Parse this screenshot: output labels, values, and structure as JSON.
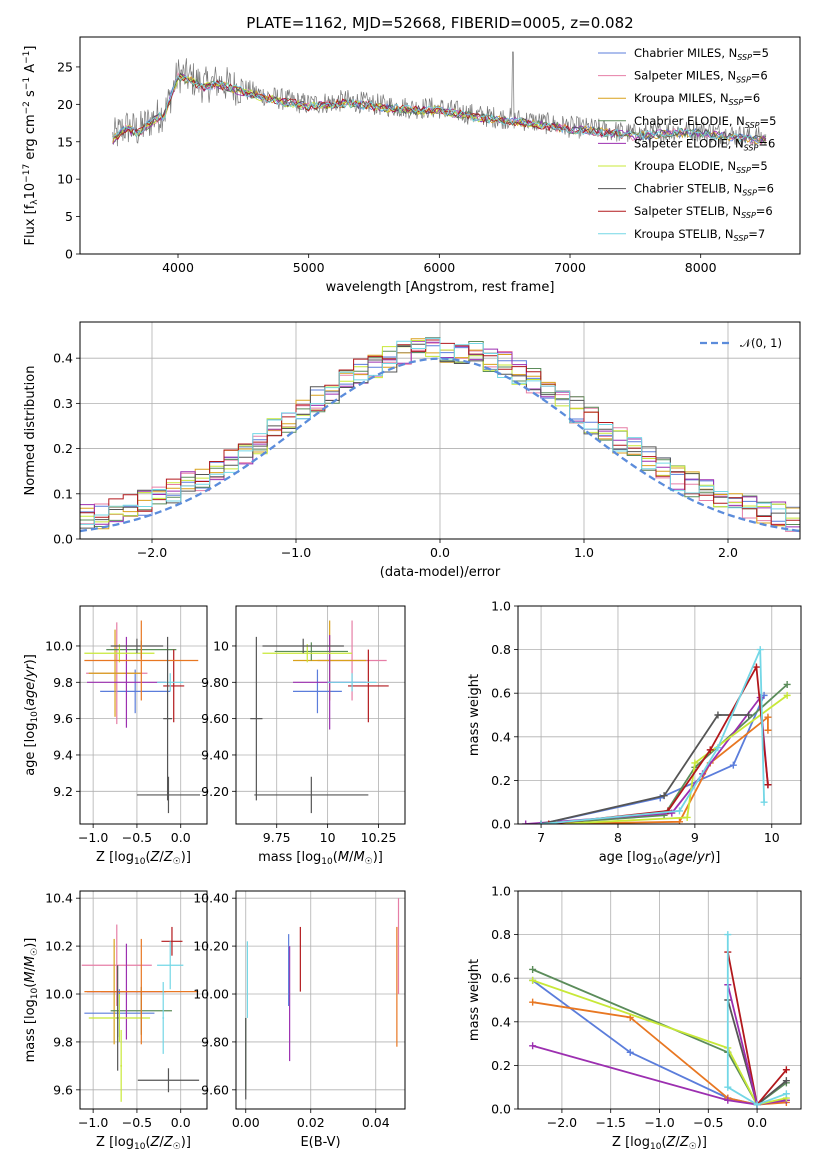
{
  "colors": {
    "Chabrier MILES": "#5b7ddb",
    "Salpeter MILES": "#e67ea6",
    "Kroupa MILES": "#d9a11c",
    "Chabrier ELODIE": "#5b8c5a",
    "Salpeter ELODIE": "#9c2fb0",
    "Kroupa ELODIE": "#c8e838",
    "Chabrier STELIB": "#555555",
    "Salpeter STELIB": "#b2181c",
    "Kroupa STELIB": "#73d7e6",
    "orange": "#e87722",
    "dashed_normal": "#5b8cdb"
  },
  "chart_data": [
    {
      "id": "spectrum",
      "type": "line",
      "title": "PLATE=1162, MJD=52668, FIBERID=0005, z=0.082",
      "xlabel": "wavelength [Angstrom, rest frame]",
      "ylabel": "Flux [f",
      "xlim": [
        3250,
        8760
      ],
      "ylim": [
        0,
        29
      ],
      "xticks": [
        4000,
        5000,
        6000,
        7000,
        8000
      ],
      "yticks": [
        0,
        5,
        10,
        15,
        20,
        25
      ],
      "legend_placement": "top-right",
      "series": [
        {
          "name": "Chabrier MILES",
          "sub": "SSP",
          "n": 5,
          "color": "Chabrier MILES"
        },
        {
          "name": "Salpeter MILES",
          "sub": "SSP",
          "n": 6,
          "color": "Salpeter MILES"
        },
        {
          "name": "Kroupa MILES",
          "sub": "SSP",
          "n": 6,
          "color": "Kroupa MILES"
        },
        {
          "name": "Chabrier ELODIE",
          "sub": "SSP",
          "n": 5,
          "color": "Chabrier ELODIE"
        },
        {
          "name": "Salpeter ELODIE",
          "sub": "SSP",
          "n": 6,
          "color": "Salpeter ELODIE"
        },
        {
          "name": "Kroupa ELODIE",
          "sub": "SSP",
          "n": 5,
          "color": "Kroupa ELODIE"
        },
        {
          "name": "Chabrier STELIB",
          "sub": "SSP",
          "n": 6,
          "color": "Chabrier STELIB"
        },
        {
          "name": "Salpeter STELIB",
          "sub": "SSP",
          "n": 6,
          "color": "Salpeter STELIB"
        },
        {
          "name": "Kroupa STELIB",
          "sub": "SSP",
          "n": 7,
          "color": "Kroupa STELIB"
        }
      ],
      "continuum_points": [
        [
          3500,
          15.5
        ],
        [
          3600,
          17
        ],
        [
          3700,
          16.5
        ],
        [
          3800,
          18
        ],
        [
          3900,
          19
        ],
        [
          4000,
          24
        ],
        [
          4100,
          23.5
        ],
        [
          4200,
          22.5
        ],
        [
          4300,
          23
        ],
        [
          4500,
          22
        ],
        [
          4700,
          21
        ],
        [
          5000,
          20
        ],
        [
          5300,
          20.5
        ],
        [
          5500,
          20
        ],
        [
          5800,
          19.5
        ],
        [
          6000,
          19.5
        ],
        [
          6300,
          18.5
        ],
        [
          6600,
          18
        ],
        [
          6800,
          17.5
        ],
        [
          7000,
          17
        ],
        [
          7300,
          16.5
        ],
        [
          7500,
          16
        ],
        [
          7800,
          16.5
        ],
        [
          8000,
          16.5
        ],
        [
          8200,
          16
        ],
        [
          8500,
          15.5
        ]
      ]
    },
    {
      "id": "residuals",
      "type": "step",
      "xlabel": "(data-model)/error",
      "ylabel": "Normed distribution",
      "xlim": [
        -2.5,
        2.5
      ],
      "ylim": [
        0,
        0.48
      ],
      "xticks": [
        -2,
        -1,
        0,
        1,
        2
      ],
      "yticks": [
        0.0,
        0.1,
        0.2,
        0.3,
        0.4
      ],
      "legend": "𝒩(0, 1)",
      "normal": {
        "mean": 0,
        "sigma": 1
      }
    },
    {
      "id": "age_vs_Z",
      "type": "errorbar",
      "xlabel": "Z [log10(Z/Z☉)]",
      "ylabel": "age  [log10(age/yr)]",
      "xlim": [
        -1.15,
        0.3
      ],
      "ylim": [
        9.02,
        10.22
      ],
      "xticks": [
        -1.0,
        -0.5,
        0.0
      ],
      "yticks": [
        9.2,
        9.4,
        9.6,
        9.8,
        10.0
      ],
      "points": [
        {
          "c": "Chabrier MILES",
          "x": -0.52,
          "y": 9.75,
          "dx": 0.4,
          "dy": 0.12
        },
        {
          "c": "Salpeter MILES",
          "x": -0.73,
          "y": 9.85,
          "dx": 0.35,
          "dy": 0.28
        },
        {
          "c": "Kroupa MILES",
          "x": -0.75,
          "y": 9.85,
          "dx": 0.3,
          "dy": 0.24
        },
        {
          "c": "Chabrier ELODIE",
          "x": -0.45,
          "y": 9.98,
          "dx": 0.4,
          "dy": 0.05
        },
        {
          "c": "Salpeter ELODIE",
          "x": -0.62,
          "y": 9.8,
          "dx": 0.45,
          "dy": 0.25
        },
        {
          "c": "Kroupa ELODIE",
          "x": -0.7,
          "y": 9.96,
          "dx": 0.4,
          "dy": 0.05
        },
        {
          "c": "Chabrier STELIB",
          "x": -0.14,
          "y": 9.18,
          "dx": 0.36,
          "dy": 0.1
        },
        {
          "c": "Salpeter STELIB",
          "x": -0.08,
          "y": 9.78,
          "dx": 0.12,
          "dy": 0.2
        },
        {
          "c": "Kroupa STELIB",
          "x": -0.12,
          "y": 9.8,
          "dx": 0.15,
          "dy": 0.05
        },
        {
          "c": "Chabrier STELIB",
          "x": -0.5,
          "y": 10.0,
          "dx": 0.3,
          "dy": 0.04
        },
        {
          "c": "orange",
          "x": -0.45,
          "y": 9.92,
          "dx": 0.65,
          "dy": 0.22
        },
        {
          "c": "Chabrier STELIB",
          "x": -0.15,
          "y": 9.6,
          "dx": 0.05,
          "dy": 0.45
        }
      ]
    },
    {
      "id": "age_vs_mass",
      "type": "errorbar",
      "xlabel": "mass [log10(M/M☉)]",
      "ylabel": "",
      "xlim": [
        9.55,
        10.38
      ],
      "ylim": [
        9.02,
        10.22
      ],
      "xticks": [
        9.75,
        10.0,
        10.25
      ],
      "yticks": [
        9.2,
        9.4,
        9.6,
        9.8,
        10.0
      ],
      "points": [
        {
          "c": "Chabrier MILES",
          "x": 9.95,
          "y": 9.75,
          "dx": 0.12,
          "dy": 0.12
        },
        {
          "c": "Salpeter MILES",
          "x": 10.12,
          "y": 9.92,
          "dx": 0.17,
          "dy": 0.22
        },
        {
          "c": "Kroupa MILES",
          "x": 10.01,
          "y": 9.92,
          "dx": 0.18,
          "dy": 0.22
        },
        {
          "c": "Chabrier ELODIE",
          "x": 9.92,
          "y": 9.97,
          "dx": 0.18,
          "dy": 0.05
        },
        {
          "c": "Salpeter ELODIE",
          "x": 10.01,
          "y": 9.8,
          "dx": 0.18,
          "dy": 0.26
        },
        {
          "c": "Kroupa ELODIE",
          "x": 9.9,
          "y": 9.96,
          "dx": 0.22,
          "dy": 0.05
        },
        {
          "c": "Chabrier STELIB",
          "x": 9.92,
          "y": 9.18,
          "dx": 0.28,
          "dy": 0.1
        },
        {
          "c": "Salpeter STELIB",
          "x": 10.2,
          "y": 9.78,
          "dx": 0.1,
          "dy": 0.2
        },
        {
          "c": "Kroupa STELIB",
          "x": 10.12,
          "y": 9.8,
          "dx": 0.12,
          "dy": 0.05
        },
        {
          "c": "Chabrier STELIB",
          "x": 9.65,
          "y": 9.6,
          "dx": 0.03,
          "dy": 0.45
        },
        {
          "c": "Chabrier STELIB",
          "x": 9.88,
          "y": 10.0,
          "dx": 0.2,
          "dy": 0.04
        }
      ]
    },
    {
      "id": "weight_vs_age",
      "type": "line",
      "xlabel": "age  [log10(age/yr)]",
      "ylabel": "mass weight",
      "xlim": [
        6.7,
        10.38
      ],
      "ylim": [
        0,
        1.0
      ],
      "xticks": [
        7,
        8,
        9,
        10
      ],
      "yticks": [
        0.0,
        0.2,
        0.4,
        0.6,
        0.8,
        1.0
      ],
      "series": [
        {
          "c": "Chabrier MILES",
          "pts": [
            [
              7.0,
              0.0
            ],
            [
              8.55,
              0.12
            ],
            [
              9.5,
              0.27
            ],
            [
              9.9,
              0.59
            ]
          ]
        },
        {
          "c": "orange",
          "pts": [
            [
              7.0,
              0.0
            ],
            [
              8.8,
              0.01
            ],
            [
              9.2,
              0.28
            ],
            [
              9.95,
              0.49
            ],
            [
              9.95,
              0.43
            ]
          ]
        },
        {
          "c": "Chabrier ELODIE",
          "pts": [
            [
              7.0,
              0.0
            ],
            [
              8.6,
              0.04
            ],
            [
              9.0,
              0.26
            ],
            [
              10.2,
              0.64
            ]
          ]
        },
        {
          "c": "Salpeter ELODIE",
          "pts": [
            [
              6.8,
              0.0
            ],
            [
              8.7,
              0.05
            ],
            [
              9.1,
              0.23
            ],
            [
              9.85,
              0.58
            ],
            [
              9.95,
              0.18
            ]
          ]
        },
        {
          "c": "Kroupa ELODIE",
          "pts": [
            [
              7.2,
              0.0
            ],
            [
              8.9,
              0.03
            ],
            [
              9.0,
              0.28
            ],
            [
              10.2,
              0.59
            ]
          ]
        },
        {
          "c": "Chabrier STELIB",
          "pts": [
            [
              7.0,
              0.0
            ],
            [
              8.6,
              0.13
            ],
            [
              9.3,
              0.5
            ],
            [
              9.7,
              0.5
            ]
          ]
        },
        {
          "c": "Salpeter STELIB",
          "pts": [
            [
              7.1,
              0.0
            ],
            [
              8.65,
              0.06
            ],
            [
              9.2,
              0.34
            ],
            [
              9.8,
              0.72
            ],
            [
              9.95,
              0.18
            ]
          ]
        },
        {
          "c": "Kroupa STELIB",
          "pts": [
            [
              7.0,
              0.0
            ],
            [
              8.8,
              0.06
            ],
            [
              9.3,
              0.35
            ],
            [
              9.85,
              0.8
            ],
            [
              9.9,
              0.1
            ]
          ]
        }
      ]
    },
    {
      "id": "mass_vs_Z",
      "type": "errorbar",
      "xlabel": "Z [log10(Z/Z☉)]",
      "ylabel": "mass [log10(M/M☉)]",
      "xlim": [
        -1.15,
        0.3
      ],
      "ylim": [
        9.52,
        10.43
      ],
      "xticks": [
        -1.0,
        -0.5,
        0.0
      ],
      "yticks": [
        9.6,
        9.8,
        10.0,
        10.2,
        10.4
      ],
      "points": [
        {
          "c": "Chabrier MILES",
          "x": -0.7,
          "y": 9.92,
          "dx": 0.4,
          "dy": 0.1
        },
        {
          "c": "Salpeter MILES",
          "x": -0.73,
          "y": 10.12,
          "dx": 0.4,
          "dy": 0.17
        },
        {
          "c": "Kroupa MILES",
          "x": -0.76,
          "y": 10.01,
          "dx": 0.15,
          "dy": 0.22
        },
        {
          "c": "Chabrier ELODIE",
          "x": -0.45,
          "y": 9.93,
          "dx": 0.35,
          "dy": 0.1
        },
        {
          "c": "Salpeter ELODIE",
          "x": -0.62,
          "y": 10.01,
          "dx": 0.45,
          "dy": 0.2
        },
        {
          "c": "Kroupa ELODIE",
          "x": -0.7,
          "y": 9.9,
          "dx": 0.35,
          "dy": 0.1
        },
        {
          "c": "Chabrier STELIB",
          "x": -0.14,
          "y": 9.64,
          "dx": 0.35,
          "dy": 0.05
        },
        {
          "c": "Salpeter STELIB",
          "x": -0.1,
          "y": 10.22,
          "dx": 0.12,
          "dy": 0.06
        },
        {
          "c": "Kroupa STELIB",
          "x": -0.12,
          "y": 10.12,
          "dx": 0.15,
          "dy": 0.1
        },
        {
          "c": "orange",
          "x": -0.45,
          "y": 10.01,
          "dx": 0.65,
          "dy": 0.22
        },
        {
          "c": "Kroupa ELODIE",
          "x": -0.68,
          "y": 9.7,
          "dx": 0.01,
          "dy": 0.15
        },
        {
          "c": "Chabrier STELIB",
          "x": -0.72,
          "y": 9.9,
          "dx": 0.01,
          "dy": 0.22
        },
        {
          "c": "Kroupa STELIB",
          "x": -0.2,
          "y": 9.9,
          "dx": 0.01,
          "dy": 0.15
        }
      ]
    },
    {
      "id": "mass_vs_ebv",
      "type": "vlines",
      "xlabel": "E(B-V)",
      "ylabel": "",
      "xlim": [
        -0.003,
        0.049
      ],
      "ylim": [
        9.52,
        10.43
      ],
      "xticks": [
        0.0,
        0.02,
        0.04
      ],
      "yticks": [
        9.6,
        9.8,
        10.0,
        10.2,
        10.4
      ],
      "lines": [
        {
          "c": "Kroupa STELIB",
          "x": 0.0005,
          "y0": 9.9,
          "y1": 10.22
        },
        {
          "c": "Chabrier ELODIE",
          "x": 0.0,
          "y0": 9.6,
          "y1": 9.9
        },
        {
          "c": "Chabrier STELIB",
          "x": 0.0,
          "y0": 9.56,
          "y1": 9.9
        },
        {
          "c": "Salpeter ELODIE",
          "x": 0.0135,
          "y0": 9.72,
          "y1": 10.2
        },
        {
          "c": "Chabrier MILES",
          "x": 0.0132,
          "y0": 9.95,
          "y1": 10.25
        },
        {
          "c": "Salpeter STELIB",
          "x": 0.0168,
          "y0": 10.01,
          "y1": 10.28
        },
        {
          "c": "orange",
          "x": 0.0465,
          "y0": 9.78,
          "y1": 10.28
        },
        {
          "c": "Salpeter MILES",
          "x": 0.047,
          "y0": 10.0,
          "y1": 10.4
        }
      ]
    },
    {
      "id": "weight_vs_Z",
      "type": "line",
      "xlabel": "Z [log10(Z/Z☉)]",
      "ylabel": "mass weight",
      "xlim": [
        -2.45,
        0.45
      ],
      "ylim": [
        0,
        1.0
      ],
      "xticks": [
        -2.0,
        -1.5,
        -1.0,
        -0.5,
        0.0
      ],
      "yticks": [
        0.0,
        0.2,
        0.4,
        0.6,
        0.8,
        1.0
      ],
      "series": [
        {
          "c": "Chabrier MILES",
          "pts": [
            [
              -2.3,
              0.59
            ],
            [
              -1.3,
              0.26
            ],
            [
              -0.3,
              0.05
            ],
            [
              0.0,
              0.02
            ],
            [
              0.3,
              0.04
            ]
          ]
        },
        {
          "c": "orange",
          "pts": [
            [
              -2.3,
              0.49
            ],
            [
              -1.3,
              0.42
            ],
            [
              -0.3,
              0.05
            ],
            [
              0.0,
              0.02
            ],
            [
              0.3,
              0.03
            ]
          ]
        },
        {
          "c": "Chabrier ELODIE",
          "pts": [
            [
              -2.3,
              0.64
            ],
            [
              -0.3,
              0.26
            ],
            [
              0.0,
              0.02
            ],
            [
              0.3,
              0.12
            ]
          ]
        },
        {
          "c": "Salpeter ELODIE",
          "pts": [
            [
              -2.3,
              0.29
            ],
            [
              -0.3,
              0.04
            ],
            [
              0.0,
              0.02
            ],
            [
              0.3,
              0.04
            ]
          ]
        },
        {
          "c": "Kroupa ELODIE",
          "pts": [
            [
              -2.3,
              0.59
            ],
            [
              -0.3,
              0.28
            ],
            [
              0.0,
              0.02
            ],
            [
              0.3,
              0.05
            ]
          ]
        },
        {
          "c": "Chabrier STELIB",
          "pts": [
            [
              -0.3,
              0.5
            ],
            [
              0.0,
              0.02
            ],
            [
              0.3,
              0.13
            ]
          ]
        },
        {
          "c": "Salpeter STELIB",
          "pts": [
            [
              -0.3,
              0.72
            ],
            [
              0.0,
              0.02
            ],
            [
              0.3,
              0.18
            ]
          ]
        },
        {
          "c": "Salpeter ELODIE",
          "pts": [
            [
              -0.3,
              0.57
            ],
            [
              0.0,
              0.02
            ]
          ]
        },
        {
          "c": "Kroupa STELIB",
          "pts": [
            [
              -0.3,
              0.8
            ],
            [
              -0.3,
              0.1
            ],
            [
              0.0,
              0.02
            ],
            [
              0.3,
              0.07
            ]
          ]
        }
      ]
    }
  ]
}
